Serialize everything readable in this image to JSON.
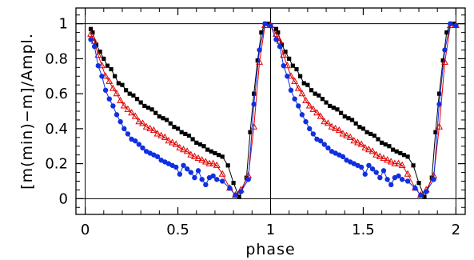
{
  "chart_data": {
    "type": "line",
    "title": "",
    "xlabel": "phase",
    "ylabel": "[m(min)−m]/Ampl.",
    "xlim": [
      -0.05,
      2.05
    ],
    "ylim": [
      -0.09,
      1.09
    ],
    "x_ticks": [
      0,
      0.5,
      1,
      1.5,
      2
    ],
    "x_tick_labels": [
      "0",
      "0.5",
      "1",
      "1.5",
      "2"
    ],
    "y_ticks": [
      0,
      0.2,
      0.4,
      0.6,
      0.8,
      1
    ],
    "y_tick_labels": [
      "0",
      "0.2",
      "0.4",
      "0.6",
      "0.8",
      "1"
    ],
    "reference_lines": {
      "vertical_x": [
        0.0,
        1.0,
        2.0
      ],
      "horizontal_y": [
        0.0,
        1.0
      ]
    },
    "grid": false,
    "legend": "none",
    "series": [
      {
        "marker": "square",
        "color": "#000000",
        "x": [
          0.03,
          0.04,
          0.06,
          0.08,
          0.1,
          0.12,
          0.14,
          0.16,
          0.18,
          0.2,
          0.22,
          0.24,
          0.26,
          0.28,
          0.3,
          0.32,
          0.34,
          0.36,
          0.38,
          0.4,
          0.42,
          0.44,
          0.46,
          0.48,
          0.5,
          0.52,
          0.54,
          0.56,
          0.58,
          0.6,
          0.62,
          0.64,
          0.66,
          0.68,
          0.7,
          0.72,
          0.74,
          0.77,
          0.8,
          0.83,
          0.87,
          0.89,
          0.91,
          0.93,
          0.95,
          0.97,
          0.99,
          1.0,
          1.03,
          1.04,
          1.06,
          1.08,
          1.1,
          1.12,
          1.14,
          1.16,
          1.18,
          1.2,
          1.22,
          1.24,
          1.26,
          1.28,
          1.3,
          1.32,
          1.34,
          1.36,
          1.38,
          1.4,
          1.42,
          1.44,
          1.46,
          1.48,
          1.5,
          1.52,
          1.54,
          1.56,
          1.58,
          1.6,
          1.62,
          1.64,
          1.66,
          1.68,
          1.7,
          1.72,
          1.74,
          1.77,
          1.8,
          1.83,
          1.87,
          1.89,
          1.91,
          1.93,
          1.95,
          1.97,
          1.99
        ],
        "y": [
          0.97,
          0.95,
          0.88,
          0.84,
          0.8,
          0.76,
          0.74,
          0.7,
          0.66,
          0.65,
          0.62,
          0.6,
          0.59,
          0.57,
          0.55,
          0.53,
          0.52,
          0.51,
          0.49,
          0.47,
          0.46,
          0.45,
          0.43,
          0.41,
          0.4,
          0.38,
          0.37,
          0.36,
          0.34,
          0.32,
          0.31,
          0.3,
          0.28,
          0.27,
          0.26,
          0.25,
          0.24,
          0.19,
          0.09,
          0.01,
          0.12,
          0.38,
          0.6,
          0.79,
          0.95,
          1.0,
          1.0,
          0.99,
          0.97,
          0.95,
          0.88,
          0.84,
          0.8,
          0.76,
          0.74,
          0.7,
          0.66,
          0.65,
          0.62,
          0.6,
          0.59,
          0.57,
          0.55,
          0.53,
          0.52,
          0.51,
          0.49,
          0.47,
          0.46,
          0.45,
          0.43,
          0.41,
          0.4,
          0.38,
          0.37,
          0.36,
          0.34,
          0.32,
          0.31,
          0.3,
          0.28,
          0.27,
          0.26,
          0.25,
          0.24,
          0.19,
          0.09,
          0.01,
          0.12,
          0.38,
          0.6,
          0.79,
          0.95,
          1.0,
          1.0
        ]
      },
      {
        "marker": "triangle",
        "color": "#e00000",
        "x": [
          0.03,
          0.05,
          0.07,
          0.09,
          0.11,
          0.13,
          0.15,
          0.17,
          0.19,
          0.21,
          0.23,
          0.25,
          0.27,
          0.29,
          0.31,
          0.33,
          0.35,
          0.37,
          0.39,
          0.41,
          0.43,
          0.45,
          0.47,
          0.49,
          0.51,
          0.53,
          0.55,
          0.57,
          0.59,
          0.61,
          0.63,
          0.65,
          0.67,
          0.69,
          0.71,
          0.74,
          0.78,
          0.81,
          0.84,
          0.88,
          0.91,
          0.94,
          0.97,
          1.0,
          1.03,
          1.05,
          1.07,
          1.09,
          1.11,
          1.13,
          1.15,
          1.17,
          1.19,
          1.21,
          1.23,
          1.25,
          1.27,
          1.29,
          1.31,
          1.33,
          1.35,
          1.37,
          1.39,
          1.41,
          1.43,
          1.45,
          1.47,
          1.49,
          1.51,
          1.53,
          1.55,
          1.57,
          1.59,
          1.61,
          1.63,
          1.65,
          1.67,
          1.69,
          1.71,
          1.74,
          1.78,
          1.81,
          1.84,
          1.88,
          1.91,
          1.94,
          1.97,
          2.0
        ],
        "y": [
          0.94,
          0.9,
          0.82,
          0.76,
          0.7,
          0.67,
          0.63,
          0.6,
          0.56,
          0.53,
          0.51,
          0.49,
          0.47,
          0.44,
          0.43,
          0.41,
          0.4,
          0.39,
          0.37,
          0.36,
          0.35,
          0.33,
          0.32,
          0.31,
          0.29,
          0.28,
          0.27,
          0.25,
          0.24,
          0.23,
          0.22,
          0.21,
          0.2,
          0.2,
          0.19,
          0.14,
          0.06,
          0.02,
          0.05,
          0.13,
          0.41,
          0.78,
          0.99,
          0.99,
          0.94,
          0.9,
          0.82,
          0.76,
          0.7,
          0.67,
          0.63,
          0.6,
          0.56,
          0.53,
          0.51,
          0.49,
          0.47,
          0.44,
          0.43,
          0.41,
          0.4,
          0.39,
          0.37,
          0.36,
          0.35,
          0.33,
          0.32,
          0.31,
          0.29,
          0.28,
          0.27,
          0.25,
          0.24,
          0.23,
          0.22,
          0.21,
          0.2,
          0.2,
          0.19,
          0.14,
          0.06,
          0.02,
          0.05,
          0.13,
          0.41,
          0.78,
          0.99,
          0.99
        ]
      },
      {
        "marker": "circle",
        "color": "#1030e0",
        "x": [
          0.03,
          0.05,
          0.07,
          0.09,
          0.11,
          0.13,
          0.15,
          0.17,
          0.19,
          0.21,
          0.23,
          0.25,
          0.27,
          0.29,
          0.31,
          0.33,
          0.35,
          0.37,
          0.39,
          0.41,
          0.43,
          0.45,
          0.47,
          0.49,
          0.51,
          0.53,
          0.55,
          0.57,
          0.59,
          0.61,
          0.63,
          0.65,
          0.67,
          0.69,
          0.71,
          0.74,
          0.78,
          0.81,
          0.84,
          0.88,
          0.91,
          0.94,
          0.97,
          1.0,
          1.03,
          1.05,
          1.07,
          1.09,
          1.11,
          1.13,
          1.15,
          1.17,
          1.19,
          1.21,
          1.23,
          1.25,
          1.27,
          1.29,
          1.31,
          1.33,
          1.35,
          1.37,
          1.39,
          1.41,
          1.43,
          1.45,
          1.47,
          1.49,
          1.51,
          1.53,
          1.55,
          1.57,
          1.59,
          1.61,
          1.63,
          1.65,
          1.67,
          1.69,
          1.71,
          1.74,
          1.78,
          1.81,
          1.84,
          1.88,
          1.91,
          1.94,
          1.97,
          2.0
        ],
        "y": [
          0.91,
          0.87,
          0.76,
          0.7,
          0.62,
          0.57,
          0.53,
          0.48,
          0.44,
          0.4,
          0.37,
          0.34,
          0.33,
          0.31,
          0.29,
          0.27,
          0.26,
          0.25,
          0.24,
          0.22,
          0.21,
          0.2,
          0.19,
          0.18,
          0.14,
          0.19,
          0.17,
          0.15,
          0.12,
          0.16,
          0.11,
          0.08,
          0.12,
          0.13,
          0.11,
          0.1,
          0.06,
          0.02,
          0.04,
          0.11,
          0.54,
          0.85,
          1.0,
          0.99,
          0.91,
          0.87,
          0.76,
          0.7,
          0.62,
          0.57,
          0.53,
          0.48,
          0.44,
          0.4,
          0.37,
          0.34,
          0.33,
          0.31,
          0.29,
          0.27,
          0.26,
          0.25,
          0.24,
          0.22,
          0.21,
          0.2,
          0.19,
          0.18,
          0.14,
          0.19,
          0.17,
          0.15,
          0.12,
          0.16,
          0.11,
          0.08,
          0.12,
          0.13,
          0.11,
          0.1,
          0.06,
          0.02,
          0.04,
          0.11,
          0.54,
          0.85,
          1.0,
          0.99
        ]
      }
    ]
  }
}
